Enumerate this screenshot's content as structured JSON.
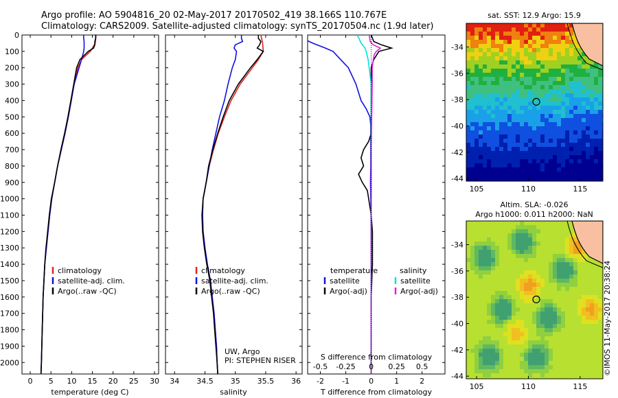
{
  "header": {
    "title_line1": "Argo profile: AO 5904816_20 02-May-2017 20170502_419 38.166S 110.767E",
    "title_line2": "Climatology: CARS2009. Satellite-adjusted climatology: synTS_20170504.nc (1.9d later)"
  },
  "stamp": "©IMOS 11-May-2017 20:38:24",
  "colors": {
    "climatology": "#e02020",
    "satellite": "#1010e0",
    "argo": "#000000",
    "sal_sat": "#00e0e0",
    "sal_argo": "#e020e0"
  },
  "chart_data": [
    {
      "type": "line",
      "id": "temperature",
      "xlabel": "temperature (deg C)",
      "ylabel": "",
      "xlim": [
        -2,
        31
      ],
      "ylim": [
        2070,
        0
      ],
      "xticks": [
        0,
        5,
        10,
        15,
        20,
        25,
        30
      ],
      "yticks": [
        0,
        100,
        200,
        300,
        400,
        500,
        600,
        700,
        800,
        900,
        1000,
        1100,
        1200,
        1300,
        1400,
        1500,
        1600,
        1700,
        1800,
        1900,
        2000
      ],
      "legend": [
        "climatology",
        "satellite-adj. clim.",
        "Argo(..raw -QC)"
      ],
      "legend_position": "lower-center",
      "series": [
        {
          "name": "climatology",
          "color": "#e02020",
          "y": [
            0,
            50,
            100,
            150,
            200,
            300,
            400,
            500,
            600,
            700,
            800,
            900,
            1000,
            1100,
            1200,
            1300,
            1400,
            1600,
            1800,
            2000,
            2070
          ],
          "x": [
            15.9,
            15.7,
            14.5,
            12.4,
            11.5,
            10.6,
            9.9,
            9.2,
            8.4,
            7.5,
            6.6,
            5.9,
            5.2,
            4.7,
            4.3,
            3.8,
            3.5,
            3.1,
            2.9,
            2.7,
            2.6
          ]
        },
        {
          "name": "satellite-adj. clim.",
          "color": "#1010e0",
          "y": [
            0,
            20,
            40,
            60,
            80,
            100,
            150,
            200,
            300,
            400,
            500,
            600,
            700,
            800,
            900,
            1000,
            1100,
            1200,
            1400,
            1600,
            1800,
            2000,
            2070
          ],
          "x": [
            12.9,
            12.9,
            13.0,
            13.0,
            13.0,
            12.9,
            12.4,
            11.8,
            10.6,
            9.9,
            9.2,
            8.4,
            7.5,
            6.6,
            5.9,
            5.2,
            4.7,
            4.3,
            3.5,
            3.1,
            2.9,
            2.7,
            2.6
          ]
        },
        {
          "name": "Argo(..raw -QC)",
          "color": "#000000",
          "y": [
            0,
            20,
            40,
            60,
            80,
            100,
            150,
            200,
            300,
            400,
            500,
            600,
            700,
            800,
            900,
            1000,
            1100,
            1200,
            1300,
            1400,
            1600,
            1800,
            2000,
            2070
          ],
          "x": [
            15.8,
            15.8,
            15.6,
            15.6,
            15.3,
            14.0,
            12.0,
            11.2,
            10.5,
            9.8,
            9.1,
            8.3,
            7.4,
            6.6,
            5.9,
            5.1,
            4.6,
            4.2,
            3.8,
            3.5,
            3.1,
            2.9,
            2.7,
            2.6
          ]
        }
      ]
    },
    {
      "type": "line",
      "id": "salinity",
      "xlabel": "salinity",
      "ylabel": "",
      "xlim": [
        33.85,
        36.1
      ],
      "ylim": [
        2070,
        0
      ],
      "xticks": [
        34,
        34.5,
        35,
        35.5,
        36
      ],
      "annotation": [
        "UW, Argo",
        "PI: STEPHEN RISER"
      ],
      "legend": [
        "climatology",
        "satellite-adj. clim.",
        "Argo(..raw -QC)"
      ],
      "legend_position": "lower-center",
      "series": [
        {
          "name": "climatology",
          "color": "#e02020",
          "y": [
            0,
            50,
            100,
            150,
            200,
            300,
            400,
            500,
            600,
            700,
            800,
            900,
            1000,
            1100,
            1200,
            1300,
            1400,
            1500,
            1600,
            1700,
            1800,
            1900,
            2000,
            2070
          ],
          "x": [
            35.42,
            35.45,
            35.46,
            35.38,
            35.28,
            35.08,
            34.93,
            34.82,
            34.72,
            34.64,
            34.57,
            34.52,
            34.47,
            34.46,
            34.47,
            34.5,
            34.54,
            34.59,
            34.62,
            34.65,
            34.67,
            34.69,
            34.7,
            34.71
          ]
        },
        {
          "name": "satellite-adj. clim.",
          "color": "#1010e0",
          "y": [
            0,
            20,
            40,
            60,
            80,
            100,
            150,
            200,
            300,
            400,
            500,
            600,
            700,
            800,
            900,
            1000,
            1100,
            1200,
            1300,
            1400,
            1500,
            1600,
            1700,
            1800,
            1900,
            2000,
            2070
          ],
          "x": [
            35.1,
            35.1,
            35.12,
            35.0,
            34.98,
            35.02,
            35.0,
            34.95,
            34.88,
            34.82,
            34.74,
            34.68,
            34.62,
            34.57,
            34.52,
            34.47,
            34.46,
            34.47,
            34.5,
            34.54,
            34.59,
            34.62,
            34.65,
            34.67,
            34.69,
            34.7,
            34.71
          ]
        },
        {
          "name": "Argo(..raw -QC)",
          "color": "#000000",
          "y": [
            0,
            20,
            40,
            60,
            80,
            100,
            150,
            200,
            300,
            400,
            500,
            600,
            700,
            800,
            900,
            1000,
            1100,
            1200,
            1300,
            1400,
            1500,
            1600,
            1700,
            1800,
            1900,
            2000,
            2070
          ],
          "x": [
            35.38,
            35.38,
            35.42,
            35.4,
            35.36,
            35.46,
            35.36,
            35.25,
            35.05,
            34.9,
            34.8,
            34.71,
            34.63,
            34.56,
            34.52,
            34.47,
            34.45,
            34.46,
            34.49,
            34.53,
            34.58,
            34.61,
            34.64,
            34.66,
            34.68,
            34.7,
            34.71
          ]
        }
      ]
    },
    {
      "type": "line",
      "id": "difference",
      "xlabel": "T difference from climatology",
      "xlabel_top": "S difference from climatology",
      "xlim": [
        -2.5,
        2.9
      ],
      "ylim": [
        2070,
        0
      ],
      "xticks": [
        -2,
        -1,
        0,
        1,
        2
      ],
      "xtick_labels": [
        "-2",
        "-1",
        "0",
        "1",
        "2"
      ],
      "stick_labels": [
        "-0.5",
        "-0.25",
        "0",
        "0.25",
        "0.5"
      ],
      "legend_headers": [
        "temperature",
        "salinity"
      ],
      "legend": [
        "satellite",
        "Argo(-adj)",
        "satellite",
        "Argo(-adj)"
      ],
      "legend_position": "lower-center",
      "series": [
        {
          "name": "satellite",
          "color": "#1010e0",
          "y": [
            0,
            20,
            50,
            80,
            100,
            150,
            200,
            300,
            400,
            450,
            500,
            550,
            600,
            700,
            800,
            900,
            1000,
            1200,
            1400,
            1600,
            1800,
            2000,
            2070
          ],
          "x": [
            -3.0,
            -2.7,
            -2.3,
            -1.8,
            -1.5,
            -1.2,
            -0.9,
            -0.6,
            -0.4,
            -0.2,
            -0.05,
            -0.02,
            -0.02,
            -0.02,
            -0.02,
            -0.03,
            -0.02,
            0.0,
            0.0,
            0.0,
            0.0,
            0.0,
            0.0
          ]
        },
        {
          "name": "Argo(-adj)",
          "color": "#000000",
          "y": [
            0,
            40,
            60,
            80,
            100,
            150,
            200,
            300,
            400,
            500,
            600,
            650,
            700,
            750,
            800,
            850,
            900,
            950,
            1000,
            1100,
            1200,
            1400,
            1600,
            1800,
            2000,
            2070
          ],
          "x": [
            0,
            0.1,
            0.4,
            0.8,
            0.3,
            0.1,
            0.0,
            0.0,
            0.0,
            0.0,
            0.0,
            -0.1,
            -0.3,
            -0.4,
            -0.3,
            -0.5,
            -0.35,
            -0.15,
            -0.1,
            0.0,
            0.05,
            0.05,
            0.0,
            0.0,
            0.0,
            0.0
          ]
        },
        {
          "name": "satellite",
          "color": "#00e0e0",
          "y": [
            0,
            20,
            50,
            80,
            100,
            150,
            200,
            300,
            400,
            500,
            600,
            700,
            800,
            1000,
            1200,
            1400,
            1600,
            1800,
            2000,
            2070
          ],
          "x": [
            -0.14,
            -0.12,
            -0.1,
            -0.06,
            -0.05,
            -0.03,
            -0.02,
            0.0,
            0.0,
            0.0,
            0.0,
            0.0,
            0.0,
            0.0,
            0.0,
            0.0,
            0.0,
            0.0,
            0.0,
            0.0
          ]
        },
        {
          "name": "Argo(-adj)",
          "color": "#e020e0",
          "y": [
            0,
            40,
            60,
            80,
            100,
            120,
            150,
            200,
            300,
            500,
            700,
            900,
            1100,
            1300,
            1500,
            1700,
            1900,
            2070
          ],
          "x": [
            -0.02,
            -0.01,
            0.02,
            0.09,
            0.05,
            0.03,
            0.02,
            0.01,
            0.01,
            0.005,
            0.0,
            0.0,
            0.0,
            0.0,
            0.0,
            0.0,
            0.0,
            0.0
          ]
        }
      ]
    },
    {
      "type": "heatmap",
      "id": "sst-map",
      "title": "sat. SST: 12.9 Argo: 15.9",
      "xticks": [
        105,
        110,
        115
      ],
      "yticks": [
        -34,
        -36,
        -38,
        -40,
        -42,
        -44
      ],
      "xlim": [
        104,
        117.2
      ],
      "ylim": [
        -44.2,
        -32.2
      ],
      "marker": {
        "lon": 110.767,
        "lat": -38.166
      }
    },
    {
      "type": "heatmap",
      "id": "sla-map",
      "title_line1": "Altim. SLA: -0.026",
      "title_line2": "Argo h1000: 0.011 h2000: NaN",
      "xticks": [
        105,
        110,
        115
      ],
      "yticks": [
        -34,
        -36,
        -38,
        -40,
        -42,
        -44
      ],
      "xlim": [
        104,
        117.2
      ],
      "ylim": [
        -44.2,
        -32.2
      ],
      "marker": {
        "lon": 110.767,
        "lat": -38.166
      }
    }
  ]
}
